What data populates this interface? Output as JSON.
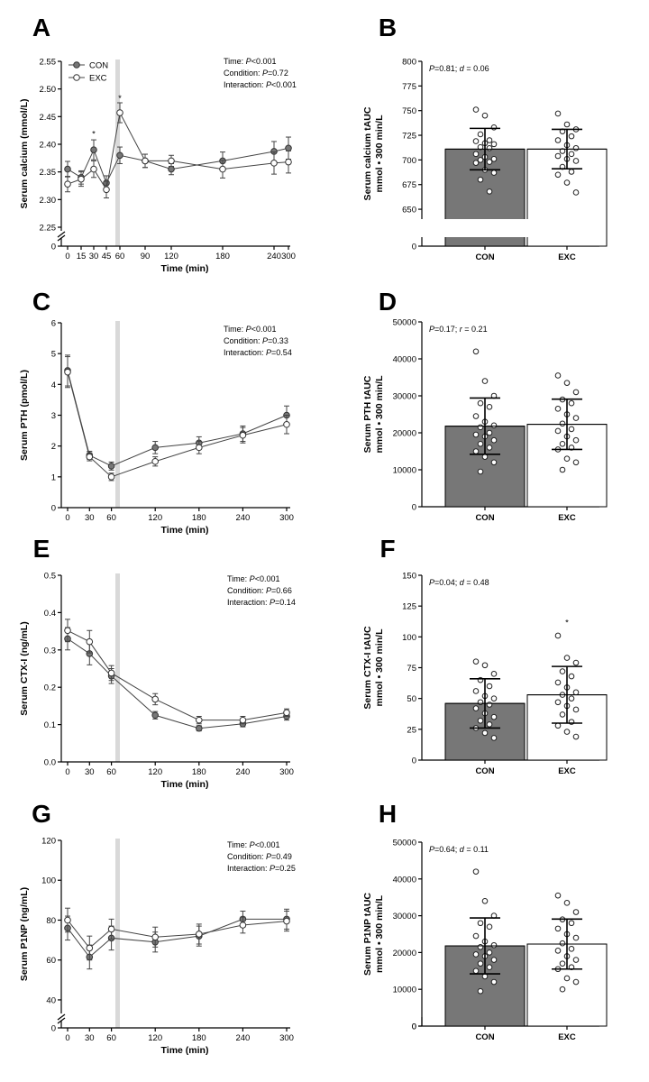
{
  "colors": {
    "con_fill": "#777777",
    "exc_fill": "#ffffff",
    "shade": "#d9d9d9",
    "line": "#000000"
  },
  "figure": {
    "legend": {
      "con": "CON",
      "exc": "EXC"
    },
    "panels": {
      "A": {
        "letter": "A",
        "ylabel": "Serum calcium (mmol/L)",
        "xlabel": "Time (min)",
        "annotation": [
          "Time: P<0.001",
          "Condition: P=0.72",
          "Interaction: P<0.001"
        ],
        "break_tick": "0",
        "sig_marks": [
          "*",
          "*"
        ]
      },
      "B": {
        "letter": "B",
        "ylabel": [
          "Serum calcium tAUC",
          "mmol • 300 min/L"
        ],
        "stat": "P=0.81; d = 0.06",
        "break_tick": "0"
      },
      "C": {
        "letter": "C",
        "ylabel": "Serum PTH (pmol/L)",
        "xlabel": "Time (min)",
        "annotation": [
          "Time: P<0.001",
          "Condition: P=0.33",
          "Interaction: P=0.54"
        ]
      },
      "D": {
        "letter": "D",
        "ylabel": [
          "Serum PTH tAUC",
          "mmol • 300 min/L"
        ],
        "stat": "P=0.17; r = 0.21"
      },
      "E": {
        "letter": "E",
        "ylabel": "Serum CTX-I (ng/mL)",
        "xlabel": "Time (min)",
        "annotation": [
          "Time: P<0.001",
          "Condition: P=0.66",
          "Interaction: P=0.14"
        ]
      },
      "F": {
        "letter": "F",
        "ylabel": [
          "Serum CTX-I tAUC",
          "mmol • 300 min/L"
        ],
        "stat": "P=0.04; d = 0.48",
        "sig_mark": "*"
      },
      "G": {
        "letter": "G",
        "ylabel": "Serum P1NP (ng/mL)",
        "xlabel": "Time (min)",
        "annotation": [
          "Time: P<0.001",
          "Condition: P=0.49",
          "Interaction: P=0.25"
        ],
        "break_tick": "0"
      },
      "H": {
        "letter": "H",
        "ylabel": [
          "Serum P1NP tAUC",
          "mmol • 300 min/L"
        ],
        "stat": "P=0.64; d = 0.11",
        "break_tick": "0"
      }
    }
  },
  "chart_data": [
    {
      "id": "A",
      "type": "line",
      "title": "",
      "xlabel": "Time (min)",
      "ylabel": "Serum calcium (mmol/L)",
      "xticks": [
        0,
        15,
        30,
        45,
        60,
        90,
        120,
        180,
        240,
        300
      ],
      "yticks": [
        2.25,
        2.3,
        2.35,
        2.4,
        2.45,
        2.5,
        2.55
      ],
      "ylim": [
        2.25,
        2.55
      ],
      "y_break": true,
      "shade_x": 55,
      "series": [
        {
          "name": "CON",
          "x": [
            0,
            15,
            30,
            45,
            60,
            90,
            120,
            180,
            240,
            300
          ],
          "y": [
            2.355,
            2.34,
            2.39,
            2.33,
            2.38,
            2.37,
            2.355,
            2.37,
            2.387,
            2.393
          ],
          "err": [
            0.014,
            0.012,
            0.018,
            0.013,
            0.015,
            0.012,
            0.01,
            0.016,
            0.018,
            0.02
          ]
        },
        {
          "name": "EXC",
          "x": [
            0,
            15,
            30,
            45,
            60,
            90,
            120,
            180,
            240,
            300
          ],
          "y": [
            2.328,
            2.337,
            2.355,
            2.318,
            2.457,
            2.37,
            2.37,
            2.355,
            2.366,
            2.368
          ],
          "err": [
            0.014,
            0.013,
            0.015,
            0.015,
            0.018,
            0.012,
            0.01,
            0.016,
            0.02,
            0.02
          ]
        }
      ],
      "significance": [
        {
          "x": 30,
          "y": 2.42,
          "label": "*"
        },
        {
          "x": 60,
          "y": 2.485,
          "label": "*"
        }
      ]
    },
    {
      "id": "B",
      "type": "bar",
      "categories": [
        "CON",
        "EXC"
      ],
      "xlabel": "",
      "ylabel": "Serum calcium tAUC mmol • 300 min/L",
      "yticks": [
        650,
        675,
        700,
        725,
        750,
        775,
        800
      ],
      "ylim": [
        640,
        800
      ],
      "y_break": true,
      "bars": [
        {
          "name": "CON",
          "mean": 711,
          "sd": 21,
          "points": [
            751,
            745,
            733,
            726,
            720,
            719,
            717,
            716,
            713,
            712,
            706,
            703,
            701,
            700,
            698,
            697,
            690,
            687,
            680,
            668
          ]
        },
        {
          "name": "EXC",
          "mean": 711,
          "sd": 20,
          "points": [
            747,
            736,
            731,
            729,
            724,
            720,
            715,
            712,
            709,
            706,
            704,
            701,
            699,
            693,
            688,
            685,
            677,
            667
          ]
        }
      ]
    },
    {
      "id": "C",
      "type": "line",
      "xlabel": "Time (min)",
      "ylabel": "Serum PTH (pmol/L)",
      "xticks": [
        0,
        30,
        60,
        120,
        180,
        240,
        300
      ],
      "yticks": [
        0,
        1,
        2,
        3,
        4,
        5,
        6
      ],
      "ylim": [
        0,
        6
      ],
      "shade_x": 55,
      "series": [
        {
          "name": "CON",
          "x": [
            0,
            30,
            60,
            120,
            180,
            240,
            300
          ],
          "y": [
            4.45,
            1.7,
            1.35,
            1.95,
            2.1,
            2.4,
            3.0
          ],
          "err": [
            0.5,
            0.13,
            0.13,
            0.2,
            0.2,
            0.25,
            0.3
          ]
        },
        {
          "name": "EXC",
          "x": [
            0,
            30,
            60,
            120,
            180,
            240,
            300
          ],
          "y": [
            4.4,
            1.65,
            1.0,
            1.5,
            1.95,
            2.35,
            2.7
          ],
          "err": [
            0.5,
            0.13,
            0.12,
            0.15,
            0.2,
            0.25,
            0.3
          ]
        }
      ]
    },
    {
      "id": "D",
      "type": "bar",
      "categories": [
        "CON",
        "EXC"
      ],
      "ylabel": "Serum PTH tAUC mmol • 300 min/L",
      "yticks": [
        0,
        10000,
        20000,
        30000,
        40000,
        50000
      ],
      "ylim": [
        0,
        50000
      ],
      "bars": [
        {
          "name": "CON",
          "mean": 21800,
          "sd": 7600,
          "points": [
            42000,
            34000,
            30000,
            28000,
            27000,
            24500,
            23000,
            22000,
            21500,
            20000,
            19500,
            19000,
            18000,
            17000,
            16000,
            15000,
            13500,
            12000,
            9500
          ]
        },
        {
          "name": "EXC",
          "mean": 22300,
          "sd": 6800,
          "points": [
            35500,
            33500,
            31000,
            29000,
            28000,
            26500,
            25000,
            24000,
            22500,
            21000,
            20500,
            19000,
            18000,
            17000,
            16000,
            15500,
            13000,
            12000,
            10000
          ]
        }
      ]
    },
    {
      "id": "E",
      "type": "line",
      "xlabel": "Time (min)",
      "ylabel": "Serum CTX-I (ng/mL)",
      "xticks": [
        0,
        30,
        60,
        120,
        180,
        240,
        300
      ],
      "yticks": [
        0.0,
        0.1,
        0.2,
        0.3,
        0.4,
        0.5
      ],
      "ylim": [
        0,
        0.5
      ],
      "shade_x": 55,
      "series": [
        {
          "name": "CON",
          "x": [
            0,
            30,
            60,
            120,
            180,
            240,
            300
          ],
          "y": [
            0.33,
            0.29,
            0.23,
            0.125,
            0.09,
            0.102,
            0.122
          ],
          "err": [
            0.03,
            0.03,
            0.02,
            0.01,
            0.007,
            0.008,
            0.01
          ]
        },
        {
          "name": "EXC",
          "x": [
            0,
            30,
            60,
            120,
            180,
            240,
            300
          ],
          "y": [
            0.352,
            0.322,
            0.238,
            0.168,
            0.112,
            0.112,
            0.132
          ],
          "err": [
            0.03,
            0.03,
            0.02,
            0.015,
            0.01,
            0.01,
            0.01
          ]
        }
      ]
    },
    {
      "id": "F",
      "type": "bar",
      "categories": [
        "CON",
        "EXC"
      ],
      "ylabel": "Serum CTX-I tAUC mmol • 300 min/L",
      "yticks": [
        0,
        25,
        50,
        75,
        100,
        125,
        150
      ],
      "ylim": [
        0,
        150
      ],
      "bars": [
        {
          "name": "CON",
          "mean": 46,
          "sd": 20,
          "points": [
            80,
            77,
            70,
            65,
            60,
            56,
            52,
            50,
            47,
            45,
            42,
            38,
            35,
            32,
            29,
            26,
            22,
            18
          ]
        },
        {
          "name": "EXC",
          "mean": 53,
          "sd": 23,
          "points": [
            101,
            83,
            79,
            72,
            68,
            63,
            59,
            55,
            53,
            50,
            47,
            44,
            41,
            37,
            31,
            28,
            23,
            19
          ]
        }
      ],
      "significance": [
        {
          "category": "EXC",
          "y": 113,
          "label": "*"
        }
      ]
    },
    {
      "id": "G",
      "type": "line",
      "xlabel": "Time (min)",
      "ylabel": "Serum P1NP (ng/mL)",
      "xticks": [
        0,
        30,
        60,
        120,
        180,
        240,
        300
      ],
      "yticks": [
        40,
        60,
        80,
        100,
        120
      ],
      "ylim": [
        35,
        120
      ],
      "y_break": true,
      "shade_x": 55,
      "series": [
        {
          "name": "CON",
          "x": [
            0,
            30,
            60,
            120,
            180,
            240,
            300
          ],
          "y": [
            76,
            61.5,
            71,
            69,
            72,
            80.5,
            80.5
          ],
          "err": [
            6,
            6,
            6,
            5,
            5,
            4,
            5
          ]
        },
        {
          "name": "EXC",
          "x": [
            0,
            30,
            60,
            120,
            180,
            240,
            300
          ],
          "y": [
            80,
            66,
            75.5,
            71.5,
            73,
            77.5,
            79.5
          ],
          "err": [
            6,
            6,
            5,
            5,
            5,
            4,
            5
          ]
        }
      ]
    },
    {
      "id": "H",
      "type": "bar",
      "categories": [
        "CON",
        "EXC"
      ],
      "ylabel": "Serum P1NP tAUC mmol • 300 min/L",
      "yticks": [
        0,
        10000,
        20000,
        30000,
        40000,
        50000
      ],
      "ylim": [
        0,
        50000
      ],
      "y_break": true,
      "bars": [
        {
          "name": "CON",
          "mean": 21800,
          "sd": 7600,
          "points": [
            42000,
            34000,
            30000,
            28000,
            27000,
            24500,
            23000,
            22000,
            21500,
            20000,
            19500,
            19000,
            18000,
            17000,
            16000,
            15000,
            13500,
            12000,
            9500
          ]
        },
        {
          "name": "EXC",
          "mean": 22300,
          "sd": 6800,
          "points": [
            35500,
            33500,
            31000,
            29000,
            28000,
            26500,
            25000,
            24000,
            22500,
            21000,
            20500,
            19000,
            18000,
            17000,
            16000,
            15500,
            13000,
            12000,
            10000
          ]
        }
      ]
    }
  ]
}
